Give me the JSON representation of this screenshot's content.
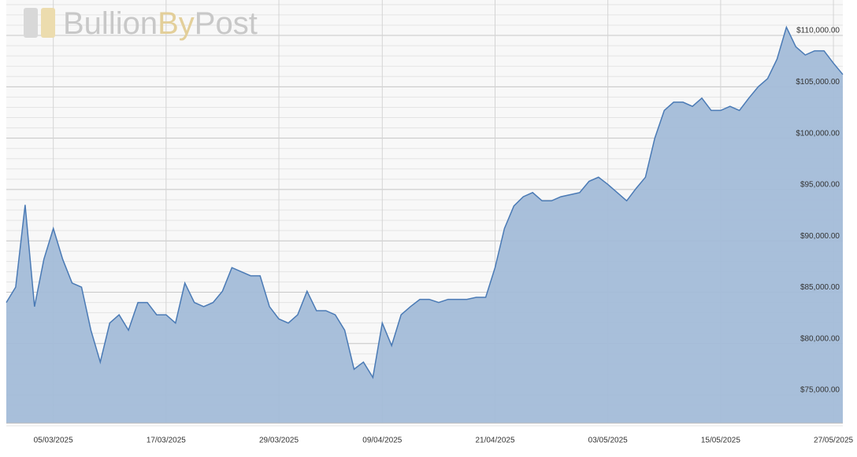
{
  "brand": {
    "part1": "Bullion",
    "part2": "By",
    "part3": "Post"
  },
  "chart_data": {
    "type": "area",
    "line_color": "#4a7ab5",
    "fill_color": "#a3bcd8",
    "grid": true,
    "x": [
      "28/02/2025",
      "01/03/2025",
      "02/03/2025",
      "03/03/2025",
      "04/03/2025",
      "05/03/2025",
      "06/03/2025",
      "07/03/2025",
      "08/03/2025",
      "09/03/2025",
      "10/03/2025",
      "11/03/2025",
      "12/03/2025",
      "13/03/2025",
      "14/03/2025",
      "15/03/2025",
      "16/03/2025",
      "17/03/2025",
      "18/03/2025",
      "19/03/2025",
      "20/03/2025",
      "21/03/2025",
      "22/03/2025",
      "23/03/2025",
      "24/03/2025",
      "25/03/2025",
      "26/03/2025",
      "27/03/2025",
      "28/03/2025",
      "29/03/2025",
      "30/03/2025",
      "31/03/2025",
      "01/04/2025",
      "02/04/2025",
      "03/04/2025",
      "04/04/2025",
      "05/04/2025",
      "06/04/2025",
      "07/04/2025",
      "08/04/2025",
      "09/04/2025",
      "10/04/2025",
      "11/04/2025",
      "12/04/2025",
      "13/04/2025",
      "14/04/2025",
      "15/04/2025",
      "16/04/2025",
      "17/04/2025",
      "18/04/2025",
      "19/04/2025",
      "20/04/2025",
      "21/04/2025",
      "22/04/2025",
      "23/04/2025",
      "24/04/2025",
      "25/04/2025",
      "26/04/2025",
      "27/04/2025",
      "28/04/2025",
      "29/04/2025",
      "30/04/2025",
      "01/05/2025",
      "02/05/2025",
      "03/05/2025",
      "04/05/2025",
      "05/05/2025",
      "06/05/2025",
      "07/05/2025",
      "08/05/2025",
      "09/05/2025",
      "10/05/2025",
      "11/05/2025",
      "12/05/2025",
      "13/05/2025",
      "14/05/2025",
      "15/05/2025",
      "16/05/2025",
      "17/05/2025",
      "18/05/2025",
      "19/05/2025",
      "20/05/2025",
      "21/05/2025",
      "22/05/2025",
      "23/05/2025",
      "24/05/2025",
      "25/05/2025",
      "26/05/2025",
      "27/05/2025",
      "28/05/2025"
    ],
    "values": [
      84000,
      85500,
      93500,
      83600,
      88200,
      91200,
      88200,
      85900,
      85500,
      81300,
      78200,
      82000,
      82800,
      81300,
      84000,
      84000,
      82800,
      82800,
      82000,
      85900,
      84000,
      83600,
      84000,
      85100,
      87400,
      87000,
      86600,
      86600,
      83600,
      82400,
      82000,
      82800,
      85100,
      83200,
      83200,
      82800,
      81300,
      77500,
      78200,
      76700,
      82000,
      79800,
      82800,
      83600,
      84300,
      84300,
      84000,
      84300,
      84300,
      84300,
      84500,
      84500,
      87400,
      91200,
      93400,
      94300,
      94700,
      93900,
      93900,
      94300,
      94500,
      94700,
      95800,
      96200,
      95500,
      94700,
      93900,
      95100,
      96200,
      100000,
      102700,
      103500,
      103500,
      103100,
      103900,
      102700,
      102700,
      103100,
      102700,
      103900,
      105000,
      105800,
      107700,
      110800,
      108900,
      108100,
      108500,
      108500,
      107300,
      106200
    ],
    "xlim": [
      "28/02/2025",
      "28/05/2025"
    ],
    "xticks": [
      "05/03/2025",
      "17/03/2025",
      "29/03/2025",
      "09/04/2025",
      "21/04/2025",
      "03/05/2025",
      "15/05/2025",
      "27/05/2025"
    ],
    "ylim": [
      72250,
      113450
    ],
    "yticks": [
      {
        "value": 75000,
        "label": "$75,000.00"
      },
      {
        "value": 80000,
        "label": "$80,000.00"
      },
      {
        "value": 85000,
        "label": "$85,000.00"
      },
      {
        "value": 90000,
        "label": "$90,000.00"
      },
      {
        "value": 95000,
        "label": "$95,000.00"
      },
      {
        "value": 100000,
        "label": "$100,000.00"
      },
      {
        "value": 105000,
        "label": "$105,000.00"
      },
      {
        "value": 110000,
        "label": "$110,000.00"
      }
    ]
  }
}
